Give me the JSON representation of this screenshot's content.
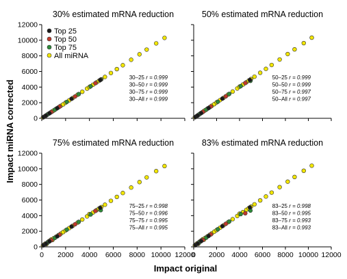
{
  "figure": {
    "ylabel": "Impact miRNA corrected",
    "xlabel": "Impact original",
    "legend": [
      {
        "label": "Top 25",
        "color": "#1a1a1a"
      },
      {
        "label": "Top 50",
        "color": "#c0392b"
      },
      {
        "label": "Top 75",
        "color": "#2e8b3a"
      },
      {
        "label": "All miRNA",
        "color": "#f2e600"
      }
    ],
    "marker_edge_color": "#333333"
  },
  "chart_data": [
    {
      "type": "scatter",
      "title": "30% estimated mRNA reduction",
      "xlim": [
        0,
        12000
      ],
      "ylim": [
        0,
        12000
      ],
      "xticks": [
        0,
        2000,
        4000,
        6000,
        8000,
        10000,
        12000
      ],
      "yticks": [
        0,
        2000,
        4000,
        6000,
        8000,
        10000,
        12000
      ],
      "show_xticklabels": false,
      "show_yticklabels": true,
      "annotations": [
        {
          "label": "30–25",
          "value": "r = 0.999"
        },
        {
          "label": "30–50",
          "value": "r = 0.999"
        },
        {
          "label": "30–75",
          "value": "r = 0.999"
        },
        {
          "label": "30–All",
          "value": "r = 0.999"
        }
      ],
      "series": [
        {
          "name": "All miRNA",
          "x": [
            100,
            200,
            300,
            400,
            500,
            600,
            700,
            800,
            900,
            1000,
            1200,
            1400,
            1600,
            1800,
            2000,
            2300,
            2600,
            3000,
            3400,
            3800,
            4000,
            4300,
            4600,
            4800,
            5000,
            5300,
            5800,
            6300,
            6800,
            7500,
            8200,
            8800,
            9600,
            10300
          ],
          "y": [
            110,
            205,
            310,
            400,
            510,
            610,
            700,
            810,
            900,
            1000,
            1210,
            1400,
            1600,
            1790,
            2010,
            2300,
            2600,
            3010,
            3400,
            3800,
            4010,
            4300,
            4600,
            4800,
            5000,
            5300,
            5800,
            6300,
            6800,
            7500,
            8200,
            8800,
            9600,
            10300
          ]
        },
        {
          "name": "Top 75",
          "x": [
            500,
            1100,
            2100,
            3100,
            4100,
            4950
          ],
          "y": [
            500,
            1100,
            2100,
            3100,
            4100,
            4950
          ]
        },
        {
          "name": "Top 50",
          "x": [
            800,
            1500,
            2800,
            4500
          ],
          "y": [
            800,
            1500,
            2800,
            4500
          ]
        },
        {
          "name": "Top 25",
          "x": [
            150,
            350,
            650,
            1300,
            2500,
            4900
          ],
          "y": [
            150,
            350,
            650,
            1300,
            2500,
            4900
          ]
        }
      ]
    },
    {
      "type": "scatter",
      "title": "50% estimated mRNA reduction",
      "xlim": [
        0,
        12000
      ],
      "ylim": [
        0,
        12000
      ],
      "xticks": [
        0,
        2000,
        4000,
        6000,
        8000,
        10000,
        12000
      ],
      "yticks": [
        0,
        2000,
        4000,
        6000,
        8000,
        10000,
        12000
      ],
      "show_xticklabels": false,
      "show_yticklabels": false,
      "annotations": [
        {
          "label": "50–25",
          "value": "r = 0.999"
        },
        {
          "label": "50–50",
          "value": "r = 0.999"
        },
        {
          "label": "50–75",
          "value": "r = 0.997"
        },
        {
          "label": "50–All",
          "value": "r = 0.997"
        }
      ],
      "series": [
        {
          "name": "All miRNA",
          "x": [
            100,
            200,
            300,
            400,
            500,
            600,
            700,
            800,
            900,
            1000,
            1200,
            1400,
            1600,
            1800,
            2000,
            2300,
            2600,
            3000,
            3400,
            3800,
            4000,
            4300,
            4600,
            4800,
            5000,
            5300,
            5800,
            6300,
            6800,
            7500,
            8200,
            8800,
            9600,
            10300
          ],
          "y": [
            130,
            220,
            330,
            420,
            520,
            640,
            720,
            830,
            930,
            1030,
            1240,
            1420,
            1630,
            1820,
            2040,
            2330,
            2620,
            3040,
            3430,
            3820,
            4050,
            4330,
            4620,
            4830,
            5030,
            5330,
            5830,
            6330,
            6830,
            7530,
            8230,
            8830,
            9630,
            10330
          ]
        },
        {
          "name": "Top 75",
          "x": [
            500,
            1100,
            2100,
            3100,
            4100,
            4950
          ],
          "y": [
            520,
            1120,
            2120,
            3120,
            4120,
            4800
          ]
        },
        {
          "name": "Top 50",
          "x": [
            800,
            1500,
            2800,
            4500
          ],
          "y": [
            820,
            1520,
            2820,
            4520
          ]
        },
        {
          "name": "Top 25",
          "x": [
            150,
            350,
            650,
            1300,
            2500,
            4900
          ],
          "y": [
            160,
            360,
            670,
            1320,
            2520,
            4920
          ]
        }
      ]
    },
    {
      "type": "scatter",
      "title": "75% estimated mRNA reduction",
      "xlim": [
        0,
        12000
      ],
      "ylim": [
        0,
        12000
      ],
      "xticks": [
        0,
        2000,
        4000,
        6000,
        8000,
        10000,
        12000
      ],
      "yticks": [
        0,
        2000,
        4000,
        6000,
        8000,
        10000,
        12000
      ],
      "show_xticklabels": true,
      "show_yticklabels": true,
      "annotations": [
        {
          "label": "75–25",
          "value": "r = 0.998"
        },
        {
          "label": "75–50",
          "value": "r = 0.996"
        },
        {
          "label": "75–75",
          "value": "r = 0.995"
        },
        {
          "label": "75–All",
          "value": "r = 0.995"
        }
      ],
      "series": [
        {
          "name": "All miRNA",
          "x": [
            100,
            200,
            300,
            400,
            500,
            600,
            700,
            800,
            900,
            1000,
            1200,
            1400,
            1600,
            1800,
            2000,
            2300,
            2600,
            3000,
            3400,
            3800,
            4000,
            4300,
            4600,
            4800,
            5000,
            5300,
            5800,
            6300,
            6800,
            7500,
            8200,
            8800,
            9600,
            10300
          ],
          "y": [
            180,
            300,
            420,
            350,
            600,
            720,
            820,
            950,
            880,
            1100,
            1300,
            1500,
            1700,
            1900,
            2100,
            2400,
            2700,
            3100,
            3500,
            3900,
            4200,
            4400,
            4700,
            4900,
            5100,
            5400,
            5900,
            6400,
            6900,
            7600,
            8300,
            8900,
            9700,
            10350
          ]
        },
        {
          "name": "Top 75",
          "x": [
            500,
            1100,
            2100,
            3100,
            4100,
            4950
          ],
          "y": [
            550,
            1150,
            2200,
            3200,
            4150,
            4700
          ]
        },
        {
          "name": "Top 50",
          "x": [
            800,
            1500,
            2800,
            4500
          ],
          "y": [
            850,
            1550,
            2900,
            4600
          ]
        },
        {
          "name": "Top 25",
          "x": [
            150,
            350,
            650,
            1300,
            2500,
            4900
          ],
          "y": [
            200,
            400,
            700,
            1350,
            2600,
            5000
          ]
        }
      ]
    },
    {
      "type": "scatter",
      "title": "83% estimated mRNA reduction",
      "xlim": [
        0,
        12000
      ],
      "ylim": [
        0,
        12000
      ],
      "xticks": [
        0,
        2000,
        4000,
        6000,
        8000,
        10000,
        12000
      ],
      "yticks": [
        0,
        2000,
        4000,
        6000,
        8000,
        10000,
        12000
      ],
      "show_xticklabels": true,
      "show_yticklabels": false,
      "annotations": [
        {
          "label": "83–25",
          "value": "r = 0.998"
        },
        {
          "label": "83–50",
          "value": "r = 0.995"
        },
        {
          "label": "83–75",
          "value": "r = 0.993"
        },
        {
          "label": "83–All",
          "value": "r = 0.993"
        }
      ],
      "series": [
        {
          "name": "All miRNA",
          "x": [
            100,
            200,
            300,
            400,
            500,
            600,
            700,
            800,
            900,
            1000,
            1200,
            1400,
            1600,
            1800,
            2000,
            2300,
            2600,
            3000,
            3400,
            3800,
            4000,
            4300,
            4600,
            4800,
            5000,
            5300,
            5800,
            6300,
            6800,
            7500,
            8200,
            8800,
            9600,
            10300
          ],
          "y": [
            200,
            320,
            450,
            380,
            640,
            750,
            850,
            980,
            920,
            1150,
            1350,
            1550,
            1750,
            1950,
            2150,
            2450,
            2750,
            3150,
            3550,
            3950,
            4250,
            4450,
            4750,
            4950,
            5150,
            5450,
            5950,
            6450,
            6950,
            7650,
            8350,
            8950,
            9750,
            10400
          ]
        },
        {
          "name": "Top 75",
          "x": [
            500,
            1100,
            2100,
            3100,
            4100,
            4950
          ],
          "y": [
            580,
            1180,
            2250,
            3250,
            4200,
            4650
          ]
        },
        {
          "name": "Top 50",
          "x": [
            800,
            1500,
            2800,
            4500
          ],
          "y": [
            880,
            1600,
            2950,
            4300
          ]
        },
        {
          "name": "Top 25",
          "x": [
            150,
            350,
            650,
            1300,
            2500,
            4900
          ],
          "y": [
            220,
            420,
            730,
            1400,
            2650,
            5050
          ]
        }
      ]
    }
  ]
}
